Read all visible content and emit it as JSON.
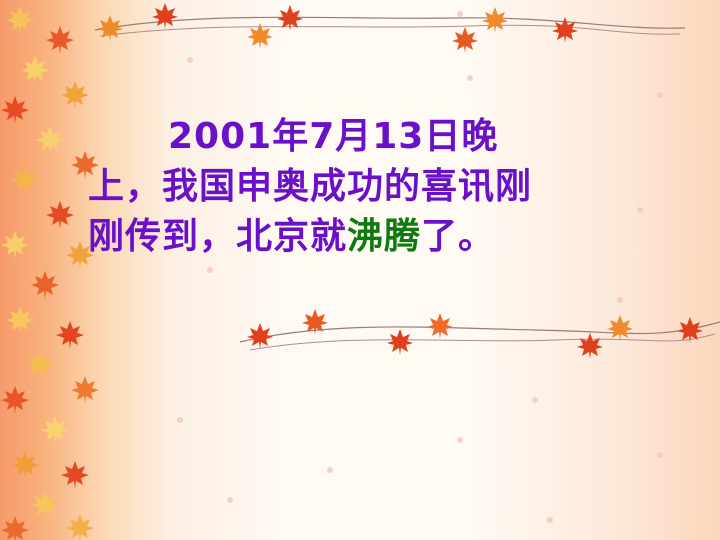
{
  "slide": {
    "line1": "2001年7月13日晚",
    "line2": "上，我国申奥成功的喜讯刚",
    "line3_a": "刚传到，北京就",
    "line3_green": "沸腾",
    "line3_b": "了。"
  },
  "colors": {
    "text": "#6b10c9",
    "highlight": "#0f7a0f",
    "leaf_red": "#e0401e",
    "leaf_orange": "#f08a2a"
  },
  "decor": {
    "left_border": "maple-leaf-pattern",
    "top_garland": "maple-leaf-garland",
    "middle_garland": "maple-leaf-garland"
  }
}
